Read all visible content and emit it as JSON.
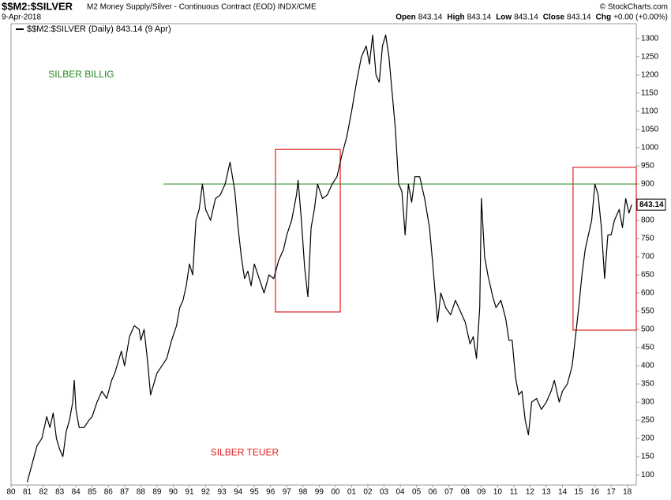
{
  "chart_data": {
    "type": "line",
    "symbol": "$$M2:$SILVER",
    "subtitle": "M2 Money Supply/Silver - Continuous Contract (EOD) INDX/CME",
    "date": "9-Apr-2018",
    "source": "© StockCharts.com",
    "ohlc": [
      {
        "label": "Open",
        "value": "843.14"
      },
      {
        "label": "High",
        "value": "843.14"
      },
      {
        "label": "Low",
        "value": "843.14"
      },
      {
        "label": "Close",
        "value": "843.14"
      },
      {
        "label": "Chg",
        "value": "+0.00 (+0.00%)"
      }
    ],
    "annotations": [
      {
        "text": "SILBER BILLIG",
        "color": "#228b22",
        "x": 1982.3,
        "y": 1200
      },
      {
        "text": "SILBER TEUER",
        "color": "#e02020",
        "x": 1992.3,
        "y": 160
      }
    ],
    "hline": {
      "value": 900,
      "x_from": 1989.4,
      "color": "#228b22"
    },
    "boxes": [
      {
        "x": [
          1996.3,
          2000.3
        ],
        "y": [
          548,
          995
        ],
        "color": "#e02020"
      },
      {
        "x": [
          2014.65,
          2018.55
        ],
        "y": [
          498,
          946
        ],
        "color": "#e02020"
      }
    ],
    "xlim": [
      1980,
      2018.55
    ],
    "xticks": [
      {
        "value": 1980,
        "label": "80"
      },
      {
        "value": 1981,
        "label": "81"
      },
      {
        "value": 1982,
        "label": "82"
      },
      {
        "value": 1983,
        "label": "83"
      },
      {
        "value": 1984,
        "label": "84"
      },
      {
        "value": 1985,
        "label": "85"
      },
      {
        "value": 1986,
        "label": "86"
      },
      {
        "value": 1987,
        "label": "87"
      },
      {
        "value": 1988,
        "label": "88"
      },
      {
        "value": 1989,
        "label": "89"
      },
      {
        "value": 1990,
        "label": "90"
      },
      {
        "value": 1991,
        "label": "91"
      },
      {
        "value": 1992,
        "label": "92"
      },
      {
        "value": 1993,
        "label": "93"
      },
      {
        "value": 1994,
        "label": "94"
      },
      {
        "value": 1995,
        "label": "95"
      },
      {
        "value": 1996,
        "label": "96"
      },
      {
        "value": 1997,
        "label": "97"
      },
      {
        "value": 1998,
        "label": "98"
      },
      {
        "value": 1999,
        "label": "99"
      },
      {
        "value": 2000,
        "label": "00"
      },
      {
        "value": 2001,
        "label": "01"
      },
      {
        "value": 2002,
        "label": "02"
      },
      {
        "value": 2003,
        "label": "03"
      },
      {
        "value": 2004,
        "label": "04"
      },
      {
        "value": 2005,
        "label": "05"
      },
      {
        "value": 2006,
        "label": "06"
      },
      {
        "value": 2007,
        "label": "07"
      },
      {
        "value": 2008,
        "label": "08"
      },
      {
        "value": 2009,
        "label": "09"
      },
      {
        "value": 2010,
        "label": "10"
      },
      {
        "value": 2011,
        "label": "11"
      },
      {
        "value": 2012,
        "label": "12"
      },
      {
        "value": 2013,
        "label": "13"
      },
      {
        "value": 2014,
        "label": "14"
      },
      {
        "value": 2015,
        "label": "15"
      },
      {
        "value": 2016,
        "label": "16"
      },
      {
        "value": 2017,
        "label": "17"
      },
      {
        "value": 2018,
        "label": "18"
      }
    ],
    "ylim": [
      72,
      1341
    ],
    "yticks": [
      100,
      150,
      200,
      250,
      300,
      350,
      400,
      450,
      500,
      550,
      600,
      650,
      700,
      750,
      800,
      850,
      900,
      950,
      1000,
      1050,
      1100,
      1150,
      1200,
      1250,
      1300
    ],
    "grid": false,
    "x": [
      1981.0,
      1981.3,
      1981.6,
      1981.9,
      1982.2,
      1982.4,
      1982.6,
      1982.8,
      1983.0,
      1983.2,
      1983.4,
      1983.6,
      1983.8,
      1983.9,
      1984.0,
      1984.2,
      1984.5,
      1984.8,
      1985.0,
      1985.3,
      1985.6,
      1985.9,
      1986.2,
      1986.4,
      1986.6,
      1986.8,
      1987.0,
      1987.3,
      1987.6,
      1987.9,
      1988.0,
      1988.2,
      1988.4,
      1988.6,
      1988.8,
      1989.0,
      1989.3,
      1989.6,
      1989.9,
      1990.2,
      1990.4,
      1990.6,
      1990.8,
      1991.0,
      1991.2,
      1991.4,
      1991.6,
      1991.8,
      1992.0,
      1992.3,
      1992.6,
      1992.9,
      1993.2,
      1993.5,
      1993.8,
      1994.0,
      1994.2,
      1994.4,
      1994.6,
      1994.8,
      1995.0,
      1995.3,
      1995.6,
      1995.9,
      1996.2,
      1996.5,
      1996.8,
      1997.0,
      1997.3,
      1997.6,
      1997.7,
      1997.9,
      1998.1,
      1998.3,
      1998.5,
      1998.7,
      1998.9,
      1999.2,
      1999.5,
      1999.8,
      2000.1,
      2000.4,
      2000.7,
      2001.0,
      2001.3,
      2001.6,
      2001.9,
      2002.1,
      2002.3,
      2002.5,
      2002.7,
      2002.9,
      2003.1,
      2003.3,
      2003.5,
      2003.7,
      2003.9,
      2004.1,
      2004.3,
      2004.5,
      2004.7,
      2004.9,
      2005.2,
      2005.5,
      2005.8,
      2006.0,
      2006.3,
      2006.5,
      2006.8,
      2007.1,
      2007.4,
      2007.7,
      2008.0,
      2008.3,
      2008.5,
      2008.7,
      2008.9,
      2009.0,
      2009.2,
      2009.4,
      2009.7,
      2009.9,
      2010.2,
      2010.5,
      2010.7,
      2010.9,
      2011.1,
      2011.3,
      2011.5,
      2011.7,
      2011.9,
      2012.1,
      2012.4,
      2012.7,
      2013.0,
      2013.3,
      2013.5,
      2013.8,
      2014.0,
      2014.3,
      2014.6,
      2014.8,
      2015.0,
      2015.2,
      2015.4,
      2015.6,
      2015.8,
      2016.0,
      2016.2,
      2016.4,
      2016.6,
      2016.8,
      2017.0,
      2017.2,
      2017.5,
      2017.7,
      2017.9,
      2018.1,
      2018.27
    ],
    "series": [
      {
        "name": "$$M2:$SILVER (Daily) 843.14 (9 Apr)",
        "color": "#000000",
        "values": [
          80,
          130,
          180,
          200,
          260,
          230,
          270,
          200,
          170,
          150,
          220,
          250,
          300,
          360,
          280,
          230,
          230,
          250,
          260,
          300,
          330,
          310,
          360,
          380,
          410,
          440,
          400,
          480,
          510,
          500,
          470,
          500,
          420,
          320,
          350,
          380,
          400,
          420,
          470,
          510,
          560,
          580,
          620,
          680,
          650,
          800,
          830,
          900,
          830,
          800,
          860,
          870,
          900,
          960,
          880,
          780,
          700,
          640,
          660,
          620,
          680,
          640,
          600,
          650,
          640,
          690,
          720,
          760,
          800,
          870,
          910,
          800,
          670,
          590,
          780,
          830,
          900,
          860,
          870,
          900,
          920,
          980,
          1030,
          1100,
          1180,
          1250,
          1280,
          1230,
          1310,
          1200,
          1180,
          1280,
          1310,
          1250,
          1150,
          1050,
          900,
          880,
          760,
          900,
          850,
          920,
          920,
          860,
          780,
          680,
          520,
          600,
          560,
          540,
          580,
          550,
          520,
          460,
          480,
          420,
          560,
          860,
          700,
          650,
          590,
          560,
          580,
          530,
          470,
          470,
          370,
          320,
          330,
          250,
          210,
          300,
          310,
          280,
          300,
          330,
          360,
          300,
          330,
          350,
          400,
          480,
          560,
          650,
          720,
          760,
          800,
          900,
          870,
          780,
          640,
          760,
          760,
          800,
          830,
          780,
          860,
          820,
          843.14
        ]
      }
    ]
  }
}
